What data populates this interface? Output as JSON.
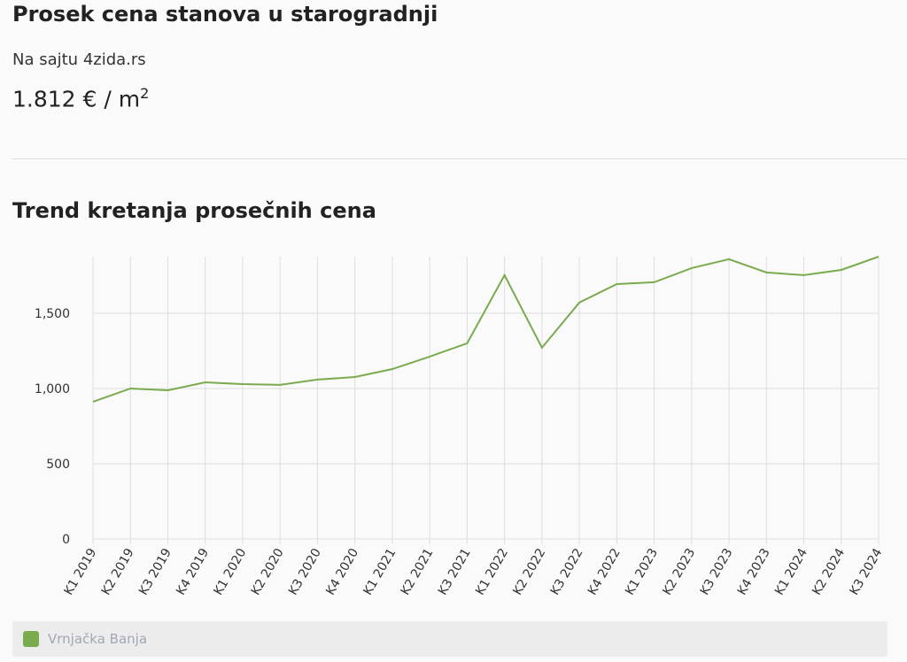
{
  "header": {
    "title": "Prosek cena stanova u starogradnji",
    "subtitle": "Na sajtu 4zida.rs",
    "price": "1.812 € / m",
    "price_exponent": "2"
  },
  "chart_heading": "Trend kretanja prosečnih cena",
  "chart_data": {
    "type": "line",
    "categories": [
      "K1 2019",
      "K2 2019",
      "K3 2019",
      "K4 2019",
      "K1 2020",
      "K2 2020",
      "K3 2020",
      "K4 2020",
      "K1 2021",
      "K2 2021",
      "K3 2021",
      "K1 2022",
      "K2 2022",
      "K3 2022",
      "K4 2022",
      "K1 2023",
      "K2 2023",
      "K3 2023",
      "K4 2023",
      "K1 2024",
      "K2 2024",
      "K3 2024"
    ],
    "series": [
      {
        "name": "Vrnjačka Banja",
        "color": "#7aab4f",
        "values": [
          912,
          1000,
          988,
          1041,
          1029,
          1024,
          1059,
          1076,
          1129,
          1212,
          1300,
          1753,
          1271,
          1571,
          1694,
          1706,
          1800,
          1859,
          1771,
          1753,
          1788,
          1876
        ]
      }
    ],
    "ylim": [
      0,
      1876
    ],
    "yticks": [
      0,
      500,
      {
        "value": 1000,
        "label": "1,000"
      },
      {
        "value": 1500,
        "label": "1,500"
      }
    ],
    "grid": true
  }
}
